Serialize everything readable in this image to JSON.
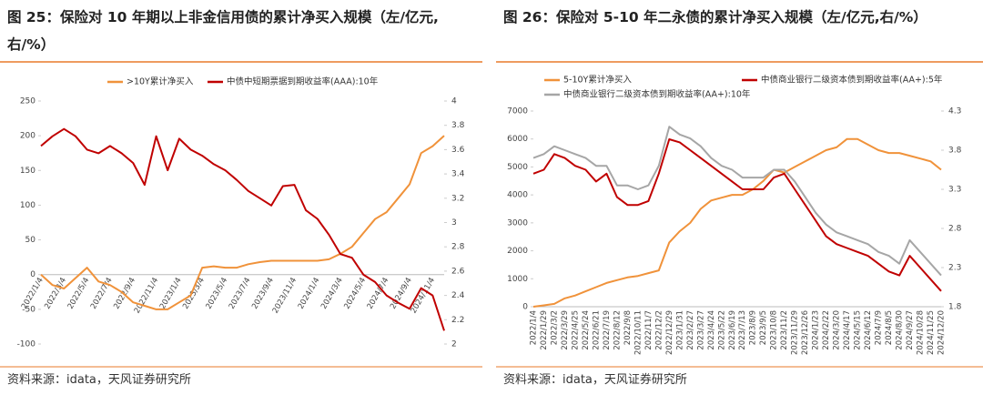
{
  "chart_data": [
    {
      "type": "line",
      "title": "图 25：保险对 10 年期以上非金信用债的累计净买入规模（左/亿元, 右/%）",
      "source": "资料来源：idata，天风证券研究所",
      "categories": [
        "2022/1/4",
        null,
        "2022/3/4",
        null,
        "2022/5/4",
        null,
        "2022/7/4",
        null,
        "2022/9/4",
        null,
        "2022/11/4",
        null,
        "2023/1/4",
        null,
        "2023/3/4",
        null,
        "2023/5/4",
        null,
        "2023/7/4",
        null,
        "2023/9/4",
        null,
        "2023/11/4",
        null,
        "2024/1/4",
        null,
        "2024/3/4",
        null,
        "2024/5/4",
        null,
        "2024/7/4",
        null,
        "2024/9/4",
        null,
        "2024/11/4",
        null
      ],
      "ylim": [
        -100,
        250
      ],
      "yticks": [
        -100,
        -50,
        0,
        50,
        100,
        150,
        200,
        250
      ],
      "y2lim": [
        2,
        4
      ],
      "y2ticks": [
        2,
        2.2,
        2.4,
        2.6,
        2.8,
        3,
        3.2,
        3.4,
        3.6,
        3.8,
        4
      ],
      "series": [
        {
          "name": ">10Y累计净买入",
          "color": "#f0923a",
          "values": [
            0,
            -15,
            -20,
            -5,
            10,
            -10,
            -15,
            -25,
            -40,
            -45,
            -50,
            -50,
            -40,
            -30,
            10,
            12,
            10,
            10,
            15,
            18,
            20,
            20,
            20,
            20,
            20,
            22,
            30,
            40,
            60,
            80,
            90,
            110,
            130,
            175,
            185,
            200
          ]
        },
        {
          "name": "中债中短期票据到期收益率(AAA):10年",
          "color": "#c00000",
          "axis": "y2",
          "values": [
            3.63,
            3.71,
            3.77,
            3.71,
            3.6,
            3.57,
            3.63,
            3.57,
            3.49,
            3.31,
            3.71,
            3.43,
            3.69,
            3.6,
            3.55,
            3.48,
            3.43,
            3.35,
            3.26,
            3.2,
            3.14,
            3.3,
            3.31,
            3.1,
            3.03,
            2.9,
            2.74,
            2.71,
            2.57,
            2.51,
            2.4,
            2.34,
            2.29,
            2.46,
            2.4,
            2.11
          ]
        }
      ]
    },
    {
      "type": "line",
      "title": "图 26：保险对 5-10 年二永债的累计净买入规模（左/亿元,右/%）",
      "source": "资料来源：idata，天风证券研究所",
      "categories": [
        "2022/1/4",
        "2022/1/29",
        "2022/3/2",
        "2022/3/29",
        "2022/4/25",
        "2022/5/24",
        "2022/6/21",
        "2022/7/19",
        "2022/8/12",
        "2022/9/8",
        "2022/10/11",
        "2022/11/7",
        "2022/12/2",
        "2022/12/29",
        "2023/1/31",
        "2023/2/27",
        "2023/3/27",
        "2023/4/24",
        "2023/5/22",
        "2023/6/19",
        "2023/7/13",
        "2023/8/9",
        "2023/9/5",
        "2023/10/8",
        "2023/11/2",
        "2023/11/29",
        "2023/12/26",
        "2024/1/23",
        "2024/2/22",
        "2024/3/20",
        "2024/4/17",
        "2024/5/15",
        "2024/6/12",
        "2024/7/9",
        "2024/8/5",
        "2024/8/30",
        "2024/9/27",
        "2024/10/28",
        "2024/11/25",
        "2024/12/20"
      ],
      "ylim": [
        0,
        7000
      ],
      "yticks": [
        0,
        1000,
        2000,
        3000,
        4000,
        5000,
        6000,
        7000
      ],
      "y2lim": [
        1.8,
        4.3
      ],
      "y2ticks": [
        1.8,
        2.3,
        2.8,
        3.3,
        3.8,
        4.3
      ],
      "series": [
        {
          "name": "5-10Y累计净买入",
          "color": "#f0923a",
          "values": [
            0,
            50,
            100,
            300,
            400,
            550,
            700,
            850,
            950,
            1050,
            1100,
            1200,
            1300,
            2300,
            2700,
            3000,
            3500,
            3800,
            3900,
            4000,
            4000,
            4200,
            4500,
            4900,
            4800,
            5000,
            5200,
            5400,
            5600,
            5700,
            6000,
            6000,
            5800,
            5600,
            5500,
            5500,
            5400,
            5300,
            5200,
            4900
          ]
        },
        {
          "name": "中债商业银行二级资本债到期收益率(AA+):5年",
          "color": "#c00000",
          "axis": "y2",
          "values": [
            3.5,
            3.55,
            3.75,
            3.7,
            3.6,
            3.55,
            3.4,
            3.5,
            3.2,
            3.1,
            3.1,
            3.15,
            3.5,
            3.94,
            3.9,
            3.8,
            3.7,
            3.6,
            3.5,
            3.4,
            3.3,
            3.3,
            3.3,
            3.45,
            3.5,
            3.3,
            3.1,
            2.9,
            2.7,
            2.6,
            2.55,
            2.5,
            2.45,
            2.35,
            2.25,
            2.2,
            2.45,
            2.3,
            2.15,
            2.0
          ]
        },
        {
          "name": "中债商业银行二级资本债到期收益率(AA+):10年",
          "color": "#a6a6a6",
          "axis": "y2",
          "values": [
            3.7,
            3.75,
            3.85,
            3.8,
            3.75,
            3.7,
            3.6,
            3.6,
            3.35,
            3.35,
            3.3,
            3.35,
            3.6,
            4.1,
            4.0,
            3.95,
            3.85,
            3.7,
            3.6,
            3.55,
            3.45,
            3.45,
            3.45,
            3.55,
            3.55,
            3.4,
            3.2,
            3.0,
            2.85,
            2.75,
            2.7,
            2.65,
            2.6,
            2.5,
            2.45,
            2.35,
            2.65,
            2.5,
            2.35,
            2.2
          ]
        }
      ]
    }
  ]
}
